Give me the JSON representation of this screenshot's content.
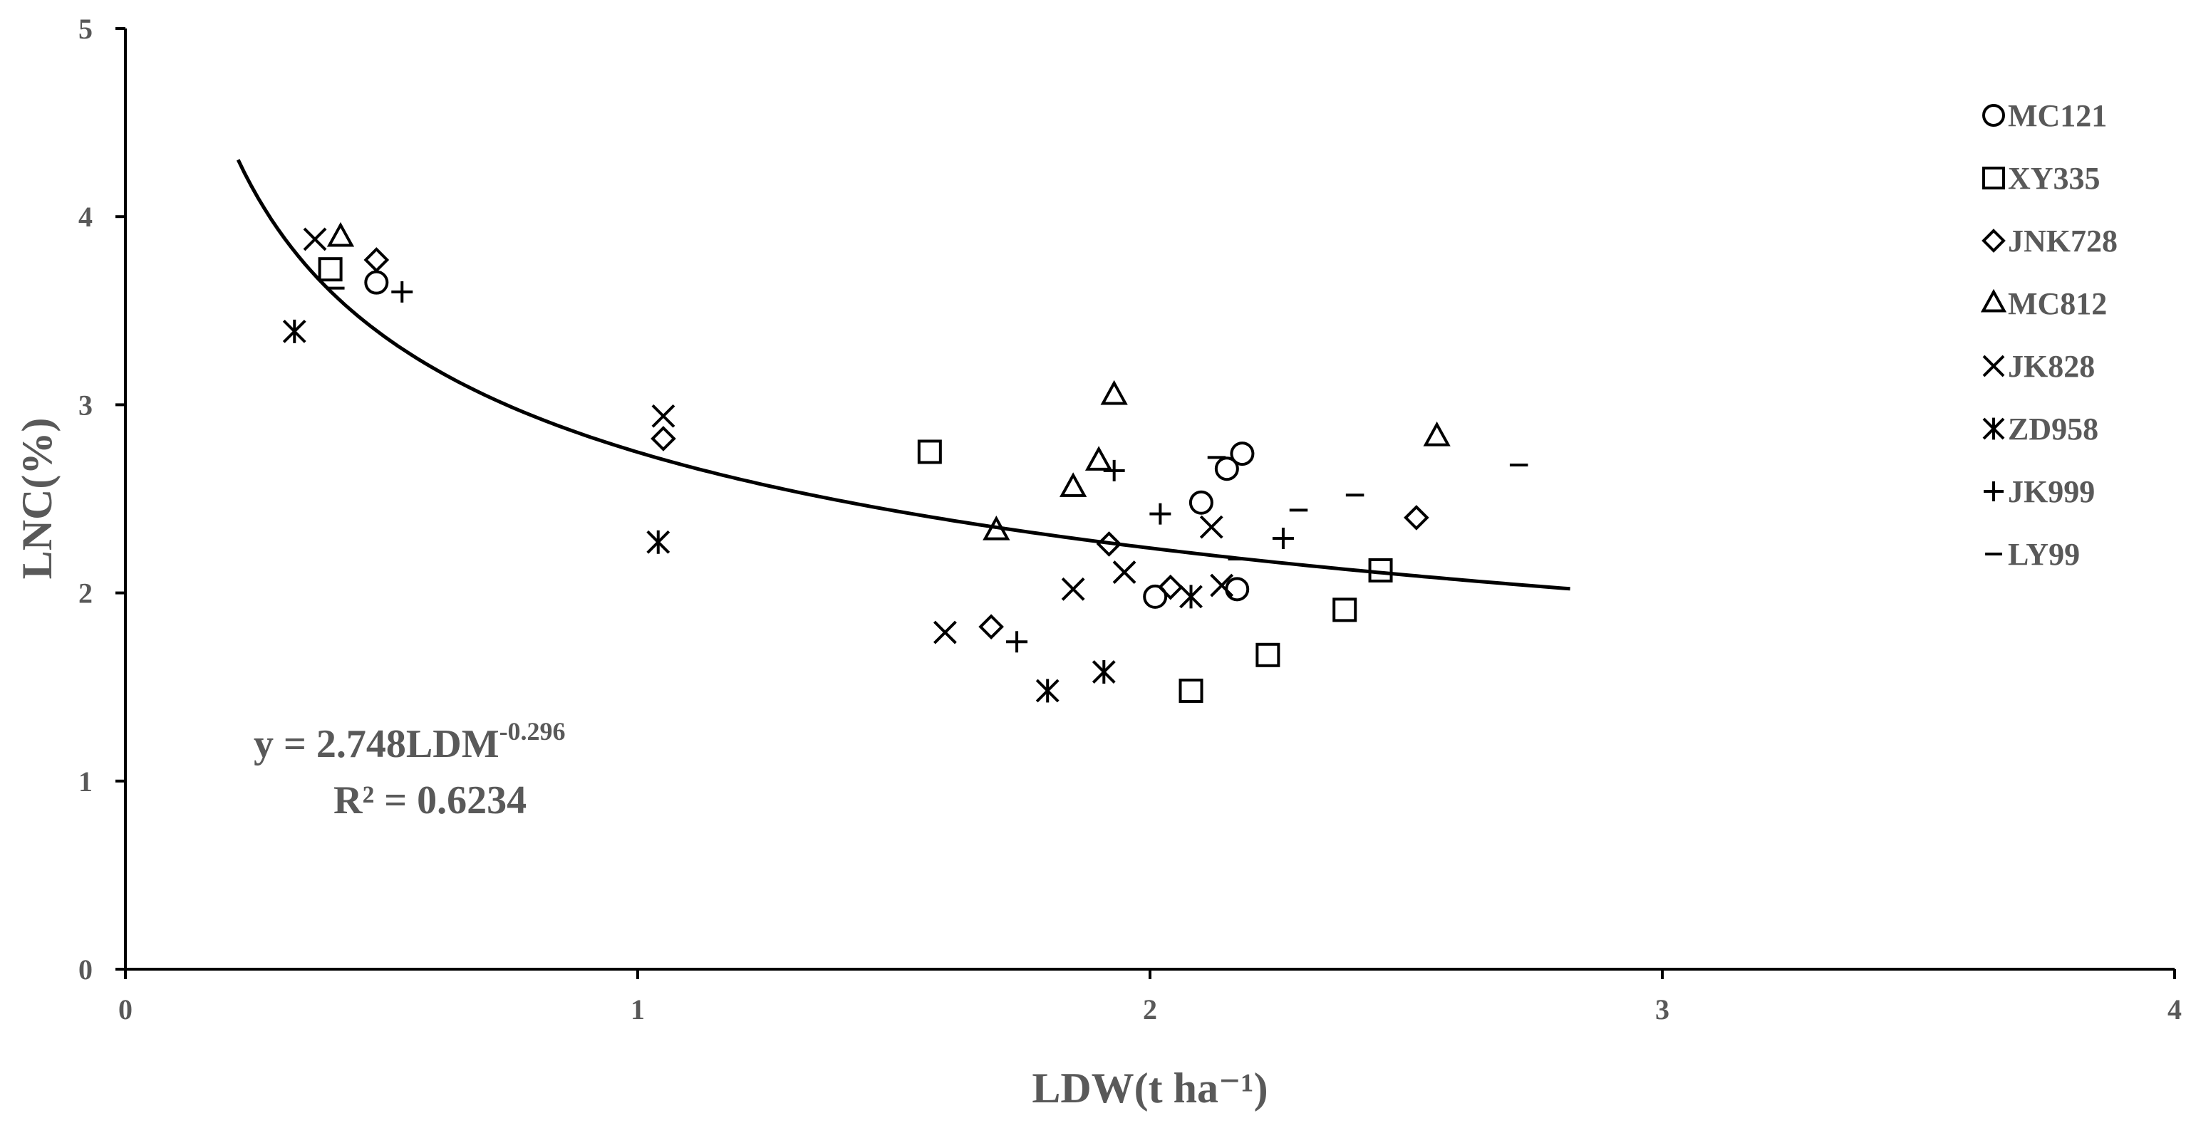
{
  "chart_data": {
    "type": "scatter",
    "xlabel": "LDW(t ha⁻¹)",
    "ylabel": "LNC(%)",
    "xlim": [
      0,
      4
    ],
    "ylim": [
      0,
      5
    ],
    "x_ticks": [
      "0",
      "1",
      "2",
      "3",
      "4"
    ],
    "y_ticks": [
      "0",
      "1",
      "2",
      "3",
      "4",
      "5"
    ],
    "legend_position": "right",
    "series": [
      {
        "name": "MC121",
        "marker": "circle",
        "x": [
          0.49,
          2.01,
          2.1,
          2.15,
          2.17,
          2.18
        ],
        "y": [
          3.65,
          1.98,
          2.48,
          2.66,
          2.02,
          2.74
        ]
      },
      {
        "name": "XY335",
        "marker": "square",
        "x": [
          0.4,
          1.57,
          2.08,
          2.23,
          2.38,
          2.45
        ],
        "y": [
          3.72,
          2.75,
          1.48,
          1.67,
          1.91,
          2.12
        ]
      },
      {
        "name": "JNK728",
        "marker": "diamond",
        "x": [
          0.49,
          1.05,
          1.69,
          1.92,
          2.04,
          2.52
        ],
        "y": [
          3.77,
          2.82,
          1.82,
          2.26,
          2.03,
          2.4
        ]
      },
      {
        "name": "MC812",
        "marker": "triangle",
        "x": [
          0.42,
          1.7,
          1.85,
          1.9,
          1.93,
          2.56
        ],
        "y": [
          3.89,
          2.33,
          2.56,
          2.7,
          3.05,
          2.83
        ]
      },
      {
        "name": "JK828",
        "marker": "x",
        "x": [
          0.37,
          1.05,
          1.6,
          1.85,
          1.95,
          2.12,
          2.14
        ],
        "y": [
          3.88,
          2.94,
          1.79,
          2.02,
          2.11,
          2.35,
          2.04
        ]
      },
      {
        "name": "ZD958",
        "marker": "asterisk",
        "x": [
          0.33,
          1.04,
          1.8,
          1.91,
          2.08
        ],
        "y": [
          3.39,
          2.27,
          1.48,
          1.58,
          1.98
        ]
      },
      {
        "name": "JK999",
        "marker": "plus",
        "x": [
          0.54,
          1.74,
          1.93,
          2.02,
          2.26
        ],
        "y": [
          3.6,
          1.74,
          2.65,
          2.42,
          2.29
        ]
      },
      {
        "name": "LY99",
        "marker": "dash",
        "x": [
          0.41,
          2.13,
          2.17,
          2.29,
          2.4,
          2.72
        ],
        "y": [
          3.62,
          2.72,
          2.18,
          2.44,
          2.52,
          2.68
        ]
      }
    ],
    "trendline": {
      "type": "power",
      "a": 2.748,
      "b": -0.296,
      "x_range": [
        0.22,
        2.82
      ]
    },
    "annotation": {
      "equation_main": "y = 2.748LDM",
      "equation_exponent": "-0.296",
      "r_squared": "R² = 0.6234"
    }
  }
}
